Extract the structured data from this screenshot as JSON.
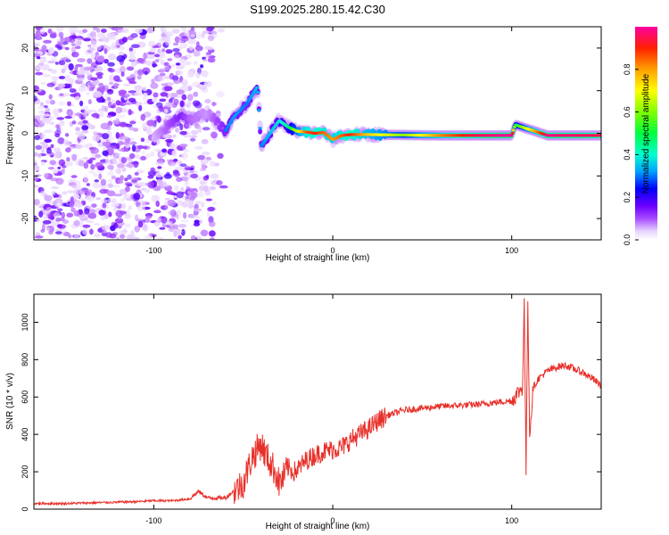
{
  "chart_data": [
    {
      "type": "heatmap",
      "title": "S199.2025.280.15.42.C30",
      "xlabel": "Height of straight line (km)",
      "ylabel": "Frequency (Hz)",
      "xlim": [
        -167,
        150
      ],
      "ylim": [
        -25,
        25
      ],
      "xticks": [
        -100,
        0,
        100
      ],
      "xtick_labels": [
        "-100",
        "0",
        "100"
      ],
      "yticks": [
        -20,
        -10,
        0,
        10,
        20
      ],
      "ytick_labels": [
        "-20",
        "-10",
        "0",
        "10",
        "20"
      ],
      "colorbar": {
        "label": "Normalized spectral amplitude",
        "range": [
          0,
          1
        ],
        "ticks": [
          0.0,
          0.2,
          0.4,
          0.6,
          0.8
        ],
        "tick_labels": [
          "0.0",
          "0.2",
          "0.4",
          "0.6",
          "0.8"
        ],
        "colormap": "rainbow"
      },
      "noise_region_x": [
        -167,
        -60
      ],
      "ridge": [
        {
          "x": -95,
          "f": 0.5,
          "amp": 0.18
        },
        {
          "x": -85,
          "f": 4.5,
          "amp": 0.3
        },
        {
          "x": -80,
          "f": 3,
          "amp": 0.2
        },
        {
          "x": -70,
          "f": 5,
          "amp": 0.15
        },
        {
          "x": -60,
          "f": 0.5,
          "amp": 0.3
        },
        {
          "x": -55,
          "f": 4,
          "amp": 0.32
        },
        {
          "x": -48,
          "f": 7,
          "amp": 0.3
        },
        {
          "x": -42,
          "f": 11,
          "amp": 0.35
        },
        {
          "x": -40,
          "f": -3,
          "amp": 0.3
        },
        {
          "x": -35,
          "f": 0,
          "amp": 0.35
        },
        {
          "x": -30,
          "f": 3,
          "amp": 0.38
        },
        {
          "x": -25,
          "f": 1.5,
          "amp": 0.45
        },
        {
          "x": -20,
          "f": 0.5,
          "amp": 0.65
        },
        {
          "x": -15,
          "f": 0.3,
          "amp": 0.85
        },
        {
          "x": -10,
          "f": 0,
          "amp": 0.9
        },
        {
          "x": -5,
          "f": 0.2,
          "amp": 0.85
        },
        {
          "x": 0,
          "f": -1.5,
          "amp": 0.8
        },
        {
          "x": 5,
          "f": -0.5,
          "amp": 0.85
        },
        {
          "x": 10,
          "f": -0.3,
          "amp": 0.9
        },
        {
          "x": 20,
          "f": -0.3,
          "amp": 0.75
        },
        {
          "x": 40,
          "f": -0.4,
          "amp": 0.6
        },
        {
          "x": 60,
          "f": -0.5,
          "amp": 0.82
        },
        {
          "x": 80,
          "f": -0.5,
          "amp": 0.95
        },
        {
          "x": 100,
          "f": -0.5,
          "amp": 1.0
        },
        {
          "x": 102,
          "f": 2,
          "amp": 0.5
        },
        {
          "x": 120,
          "f": -0.5,
          "amp": 0.98
        },
        {
          "x": 150,
          "f": -0.5,
          "amp": 0.95
        }
      ]
    },
    {
      "type": "line",
      "xlabel": "Height of straight line (km)",
      "ylabel": "SNR (10 * v/v)",
      "xlim": [
        -167,
        150
      ],
      "ylim": [
        0,
        1150
      ],
      "xticks": [
        -100,
        0,
        100
      ],
      "xtick_labels": [
        "-100",
        "0",
        "100"
      ],
      "yticks": [
        0,
        200,
        400,
        600,
        800,
        1000
      ],
      "ytick_labels": [
        "0",
        "200",
        "400",
        "600",
        "800",
        "1000"
      ],
      "color": "#e8302a",
      "series": [
        {
          "name": "SNR",
          "x": [
            -167,
            -150,
            -130,
            -110,
            -100,
            -90,
            -80,
            -75,
            -70,
            -60,
            -50,
            -45,
            -40,
            -38,
            -35,
            -32,
            -30,
            -28,
            -25,
            -22,
            -20,
            -15,
            -10,
            -5,
            0,
            5,
            10,
            15,
            20,
            25,
            30,
            40,
            50,
            60,
            70,
            80,
            90,
            100,
            104,
            106,
            107,
            108,
            109,
            110,
            112,
            115,
            120,
            125,
            130,
            135,
            140,
            145,
            150
          ],
          "y": [
            30,
            30,
            35,
            40,
            45,
            45,
            55,
            95,
            60,
            60,
            140,
            280,
            350,
            300,
            250,
            200,
            140,
            160,
            220,
            200,
            210,
            260,
            290,
            310,
            320,
            330,
            370,
            400,
            430,
            470,
            500,
            530,
            540,
            550,
            555,
            560,
            570,
            580,
            630,
            650,
            1100,
            200,
            1140,
            400,
            650,
            700,
            740,
            760,
            770,
            750,
            730,
            700,
            660
          ]
        }
      ]
    }
  ]
}
